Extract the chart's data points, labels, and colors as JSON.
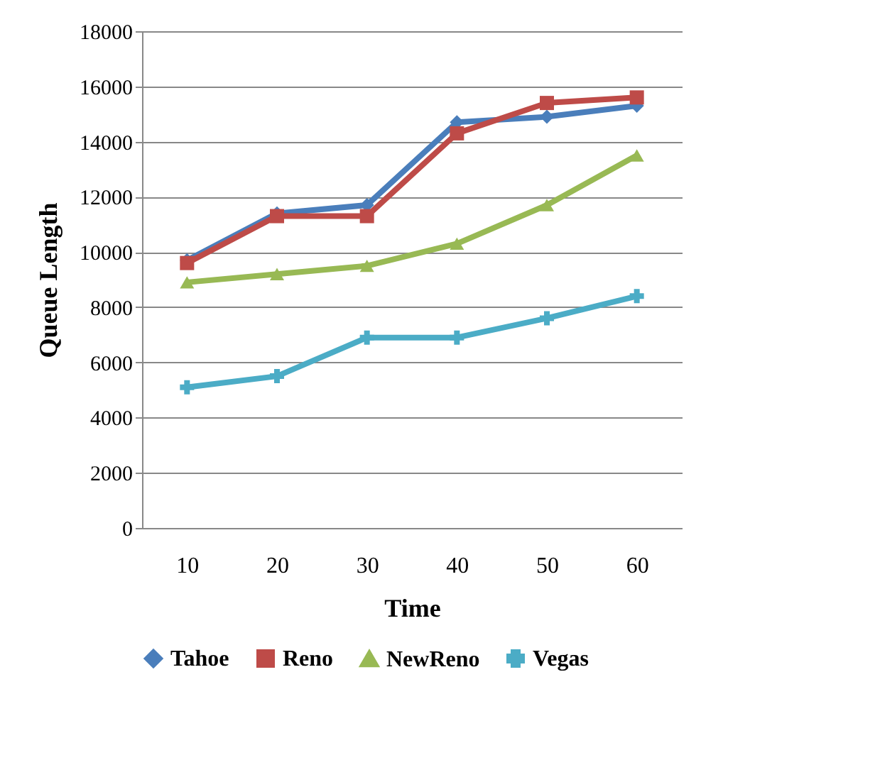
{
  "chart_data": {
    "type": "line",
    "xlabel": "Time",
    "ylabel": "Queue   Length",
    "categories": [
      "10",
      "20",
      "30",
      "40",
      "50",
      "60"
    ],
    "ylim": [
      0,
      18000
    ],
    "yticks": [
      0,
      2000,
      4000,
      6000,
      8000,
      10000,
      12000,
      14000,
      16000,
      18000
    ],
    "grid": "y",
    "legend": "bottom",
    "line_style": "solid",
    "series": [
      {
        "name": "Tahoe",
        "color": "#4a7ebb",
        "marker": "diamond",
        "values": [
          9700,
          11400,
          11700,
          14700,
          14900,
          15300
        ]
      },
      {
        "name": "Reno",
        "color": "#be4b48",
        "marker": "square",
        "values": [
          9600,
          11300,
          11300,
          14300,
          15400,
          15600
        ]
      },
      {
        "name": "NewReno",
        "color": "#98b954",
        "marker": "triangle",
        "values": [
          8900,
          9200,
          9500,
          10300,
          11700,
          13500
        ]
      },
      {
        "name": "Vegas",
        "color": "#4bacc6",
        "marker": "cross",
        "values": [
          5100,
          5500,
          6900,
          6900,
          7600,
          8400
        ]
      }
    ]
  }
}
